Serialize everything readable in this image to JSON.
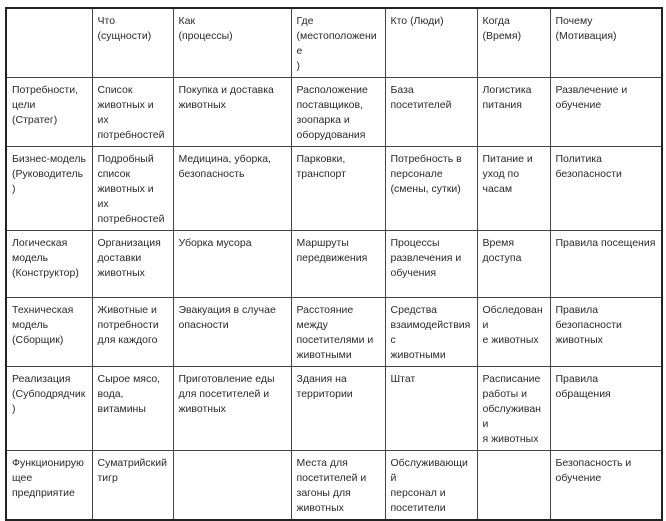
{
  "table": {
    "header": [
      "",
      "Что\n(сущности)",
      "Как\n(процессы)",
      "Где\n(местоположение\n)",
      "Кто (Люди)",
      "Когда\n(Время)",
      "Почему (Мотивация)"
    ],
    "rows": [
      [
        "Потребности,\nцели\n(Стратег)",
        "Список\nживотных и их\nпотребностей",
        "Покупка и доставка\nживотных",
        "Расположение\nпоставщиков,\nзоопарка и\nоборудования",
        "База посетителей",
        "Логистика\nпитания",
        "Развлечение и\nобучение"
      ],
      [
        "Бизнес-модель\n(Руководитель)",
        "Подробный\nсписок\nживотных и их\nпотребностей",
        "Медицина, уборка,\nбезопасность",
        "Парковки,\nтранспорт",
        "Потребность в\nперсонале\n(смены, сутки)",
        "Питание и\nуход по\nчасам",
        "Политика\nбезопасности"
      ],
      [
        "Логическая\nмодель\n(Конструктор)",
        "Организация\nдоставки\nживотных",
        "Уборка мусора",
        "Маршруты\nпередвижения",
        "Процессы\nразвлечения и\nобучения",
        "Время\nдоступа",
        "Правила посещения"
      ],
      [
        "Техническая\nмодель\n(Сборщик)",
        "Животные и\nпотребности\nдля каждого",
        "Эвакуация в случае\nопасности",
        "Расстояние\nмежду\nпосетителями и\nживотными",
        "Средства\nвзаимодействия с\nживотными",
        "Обследовани\nе животных",
        "Правила\nбезопасности\nживотных"
      ],
      [
        "Реализация\n(Субподрядчик)",
        "Сырое мясо,\nвода,\nвитамины",
        "Приготовление еды\nдля посетителей и\nживотных",
        "Здания на\nтерритории",
        "Штат",
        "Расписание\nработы и\nобслуживани\nя животных",
        "Правила обращения"
      ],
      [
        "Функционирую\nщее\nпредприятие",
        "Суматрийский\nтигр",
        "",
        "Места для\nпосетителей и\nзагоны для\nживотных",
        "Обслуживающий\nперсонал и\nпосетители",
        "",
        "Безопасность и\nобучение"
      ]
    ]
  }
}
